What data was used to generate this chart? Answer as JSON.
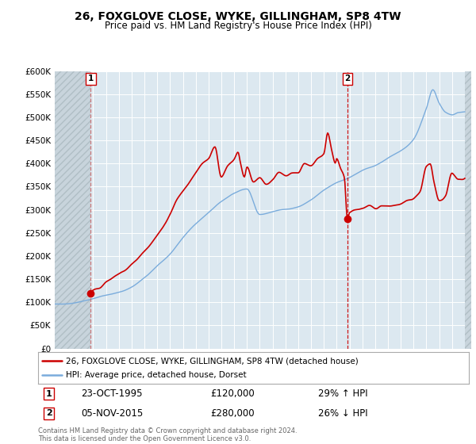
{
  "title": "26, FOXGLOVE CLOSE, WYKE, GILLINGHAM, SP8 4TW",
  "subtitle": "Price paid vs. HM Land Registry's House Price Index (HPI)",
  "ylim": [
    0,
    600000
  ],
  "xlim_start": 1993,
  "xlim_end": 2025.5,
  "transaction1_x": 1995.81,
  "transaction1_y": 120000,
  "transaction2_x": 2015.84,
  "transaction2_y": 280000,
  "legend_line1": "26, FOXGLOVE CLOSE, WYKE, GILLINGHAM, SP8 4TW (detached house)",
  "legend_line2": "HPI: Average price, detached house, Dorset",
  "footer": "Contains HM Land Registry data © Crown copyright and database right 2024.\nThis data is licensed under the Open Government Licence v3.0.",
  "line_color_red": "#cc0000",
  "line_color_blue": "#7aacdc",
  "plot_bg": "#dce8f0",
  "hatch_color": "#c8d4dc"
}
